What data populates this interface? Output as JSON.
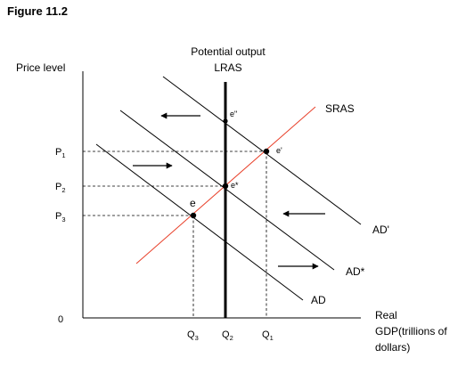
{
  "figure_label": "Figure 11.2",
  "axes": {
    "y_label": "Price level",
    "x_label_lines": [
      "Real",
      "GDP(trillions of",
      "dollars)"
    ],
    "origin": "0"
  },
  "lras_label_lines": [
    "Potential output",
    "LRAS"
  ],
  "curves": {
    "sras": "SRAS",
    "ad": "AD",
    "ad_star": "AD*",
    "ad_prime": "AD'"
  },
  "points": {
    "e": "e",
    "e_star": "e*",
    "e_prime": "e'",
    "e_double_prime": "e\""
  },
  "price_ticks": [
    {
      "base": "P",
      "sub": "1"
    },
    {
      "base": "P",
      "sub": "2"
    },
    {
      "base": "P",
      "sub": "3"
    }
  ],
  "quantity_ticks": [
    {
      "base": "Q",
      "sub": "3"
    },
    {
      "base": "Q",
      "sub": "2"
    },
    {
      "base": "Q",
      "sub": "1"
    }
  ],
  "colors": {
    "axis": "#000000",
    "lras": "#000000",
    "sras": "#e8402a",
    "ad_lines": "#000000",
    "guides": "#000000",
    "background": "#ffffff"
  }
}
